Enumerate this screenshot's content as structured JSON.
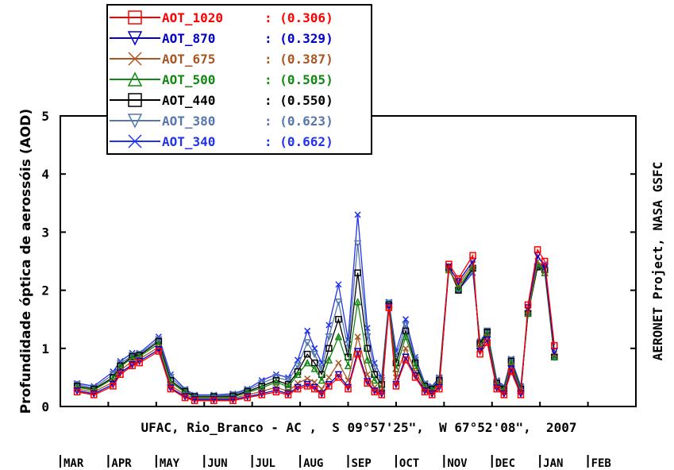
{
  "chart_data": {
    "type": "scatter",
    "ylabel": "Profundidade óptica de aerossóis (AOD)",
    "right_label": "AERONET Project, NASA GSFC",
    "site_caption": "UFAC, Rio_Branco - AC ,  S 09°57'25\",  W 67°52'08\",  2007",
    "ylim": [
      0,
      5
    ],
    "yticks": [
      "0",
      "1",
      "2",
      "3",
      "4",
      "5"
    ],
    "xlim": [
      0,
      12
    ],
    "month_labels": [
      "MAR",
      "APR",
      "MAY",
      "JUN",
      "JUL",
      "AUG",
      "SEP",
      "OCT",
      "NOV",
      "DEC",
      "JAN",
      "FEB"
    ],
    "legend_position": "top-left",
    "x": [
      0.35,
      0.7,
      1.1,
      1.25,
      1.5,
      1.65,
      2.05,
      2.3,
      2.6,
      2.8,
      3.2,
      3.6,
      3.9,
      4.2,
      4.5,
      4.75,
      4.95,
      5.15,
      5.3,
      5.45,
      5.6,
      5.8,
      6.0,
      6.2,
      6.4,
      6.55,
      6.7,
      6.85,
      7.0,
      7.2,
      7.4,
      7.6,
      7.75,
      7.9,
      8.1,
      8.3,
      8.6,
      8.75,
      8.9,
      9.1,
      9.25,
      9.4,
      9.6,
      9.75,
      9.95,
      10.1,
      10.3
    ],
    "series": [
      {
        "name": "AOT_1020",
        "mean_label": ": (0.306)",
        "color": "#ff0000",
        "marker": "square",
        "values": [
          0.25,
          0.2,
          0.35,
          0.55,
          0.7,
          0.75,
          0.95,
          0.3,
          0.15,
          0.1,
          0.1,
          0.1,
          0.15,
          0.2,
          0.25,
          0.2,
          0.3,
          0.35,
          0.3,
          0.2,
          0.35,
          0.5,
          0.3,
          0.9,
          0.4,
          0.25,
          0.2,
          1.7,
          0.35,
          0.8,
          0.5,
          0.25,
          0.2,
          0.3,
          2.45,
          2.2,
          2.6,
          0.9,
          1.1,
          0.3,
          0.2,
          0.6,
          0.2,
          1.75,
          2.7,
          2.5,
          1.05
        ]
      },
      {
        "name": "AOT_870",
        "mean_label": ": (0.329)",
        "color": "#0000cc",
        "marker": "triangle-down",
        "values": [
          0.27,
          0.22,
          0.38,
          0.58,
          0.72,
          0.78,
          0.98,
          0.32,
          0.17,
          0.12,
          0.12,
          0.12,
          0.17,
          0.22,
          0.28,
          0.22,
          0.33,
          0.38,
          0.33,
          0.22,
          0.38,
          0.55,
          0.33,
          0.95,
          0.43,
          0.27,
          0.22,
          1.72,
          0.38,
          0.85,
          0.53,
          0.27,
          0.22,
          0.33,
          2.4,
          2.15,
          2.5,
          0.95,
          1.15,
          0.32,
          0.22,
          0.65,
          0.22,
          1.7,
          2.6,
          2.4,
          0.95
        ]
      },
      {
        "name": "AOT_675",
        "mean_label": ": (0.387)",
        "color": "#aa5522",
        "marker": "x",
        "values": [
          0.3,
          0.25,
          0.42,
          0.62,
          0.78,
          0.82,
          1.02,
          0.36,
          0.2,
          0.14,
          0.14,
          0.14,
          0.2,
          0.26,
          0.33,
          0.26,
          0.4,
          0.48,
          0.42,
          0.3,
          0.5,
          0.75,
          0.45,
          1.2,
          0.55,
          0.33,
          0.27,
          1.72,
          0.5,
          1.0,
          0.6,
          0.3,
          0.25,
          0.38,
          2.35,
          2.1,
          2.45,
          1.0,
          1.2,
          0.35,
          0.25,
          0.7,
          0.25,
          1.65,
          2.5,
          2.35,
          0.9
        ]
      },
      {
        "name": "AOT_500",
        "mean_label": ": (0.505)",
        "color": "#118811",
        "marker": "triangle-up",
        "values": [
          0.33,
          0.28,
          0.48,
          0.68,
          0.84,
          0.86,
          1.08,
          0.42,
          0.24,
          0.16,
          0.16,
          0.16,
          0.24,
          0.32,
          0.42,
          0.34,
          0.55,
          0.75,
          0.65,
          0.45,
          0.8,
          1.2,
          0.7,
          1.8,
          0.8,
          0.45,
          0.33,
          1.75,
          0.65,
          1.2,
          0.7,
          0.33,
          0.28,
          0.42,
          2.35,
          2.05,
          2.4,
          1.05,
          1.25,
          0.38,
          0.28,
          0.75,
          0.28,
          1.6,
          2.45,
          2.3,
          0.85
        ]
      },
      {
        "name": "AOT_440",
        "mean_label": ": (0.550)",
        "color": "#000000",
        "marker": "square",
        "values": [
          0.35,
          0.3,
          0.5,
          0.7,
          0.86,
          0.88,
          1.12,
          0.45,
          0.26,
          0.17,
          0.17,
          0.18,
          0.26,
          0.35,
          0.45,
          0.38,
          0.6,
          0.9,
          0.75,
          0.55,
          1.0,
          1.5,
          0.85,
          2.3,
          1.0,
          0.55,
          0.38,
          1.75,
          0.75,
          1.3,
          0.75,
          0.35,
          0.3,
          0.45,
          2.38,
          2.0,
          2.38,
          1.08,
          1.28,
          0.4,
          0.3,
          0.78,
          0.3,
          1.6,
          2.4,
          2.35,
          0.85
        ]
      },
      {
        "name": "AOT_380",
        "mean_label": ": (0.623)",
        "color": "#5577aa",
        "marker": "triangle-down",
        "values": [
          0.38,
          0.32,
          0.55,
          0.74,
          0.88,
          0.9,
          1.15,
          0.5,
          0.28,
          0.18,
          0.18,
          0.2,
          0.28,
          0.4,
          0.5,
          0.45,
          0.7,
          1.1,
          0.9,
          0.65,
          1.2,
          1.8,
          1.0,
          2.8,
          1.2,
          0.65,
          0.45,
          1.78,
          0.85,
          1.4,
          0.8,
          0.38,
          0.32,
          0.48,
          2.4,
          2.0,
          2.35,
          1.1,
          1.3,
          0.42,
          0.32,
          0.8,
          0.32,
          1.6,
          2.4,
          2.4,
          0.85
        ]
      },
      {
        "name": "AOT_340",
        "mean_label": ": (0.662)",
        "color": "#2233ee",
        "marker": "x",
        "values": [
          0.4,
          0.35,
          0.6,
          0.78,
          0.92,
          0.92,
          1.2,
          0.55,
          0.3,
          0.2,
          0.2,
          0.22,
          0.3,
          0.45,
          0.55,
          0.5,
          0.8,
          1.3,
          1.0,
          0.75,
          1.4,
          2.1,
          1.15,
          3.3,
          1.35,
          0.75,
          0.5,
          1.8,
          0.95,
          1.5,
          0.85,
          0.4,
          0.35,
          0.5,
          2.42,
          2.0,
          2.3,
          1.12,
          1.3,
          0.45,
          0.35,
          0.82,
          0.35,
          1.6,
          2.4,
          2.45,
          0.85
        ]
      }
    ]
  }
}
